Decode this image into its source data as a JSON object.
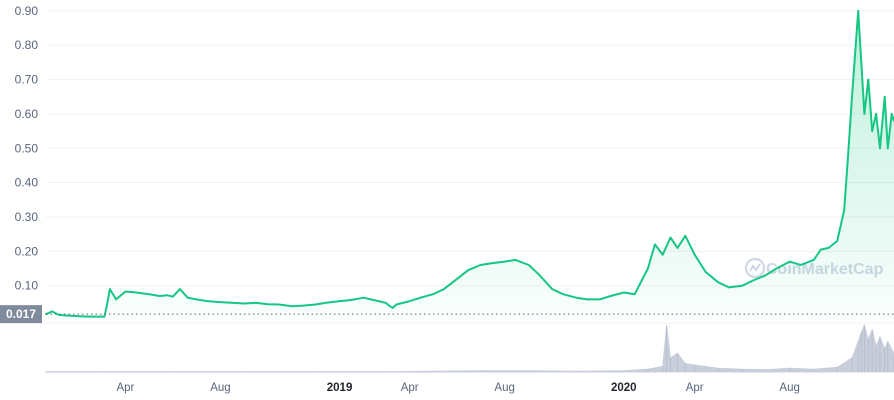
{
  "chart_data": {
    "type": "area",
    "title": "",
    "xlabel": "",
    "ylabel": "",
    "y_ticks": [
      "0.10",
      "0.20",
      "0.30",
      "0.40",
      "0.50",
      "0.60",
      "0.70",
      "0.80",
      "0.90"
    ],
    "ylim": [
      0.0,
      0.92
    ],
    "x_ticks": [
      {
        "label": "Apr",
        "date": "2018-04-01",
        "bold": false
      },
      {
        "label": "Aug",
        "date": "2018-08-01",
        "bold": false
      },
      {
        "label": "2019",
        "date": "2019-01-01",
        "bold": true
      },
      {
        "label": "Apr",
        "date": "2019-04-01",
        "bold": false
      },
      {
        "label": "Aug",
        "date": "2019-08-01",
        "bold": false
      },
      {
        "label": "2020",
        "date": "2020-01-01",
        "bold": true
      },
      {
        "label": "Apr",
        "date": "2020-04-01",
        "bold": false
      },
      {
        "label": "Aug",
        "date": "2020-08-01",
        "bold": false
      }
    ],
    "xlim": [
      "2017-12-20",
      "2020-12-13"
    ],
    "current_price_label": "0.017",
    "current_price": 0.017,
    "grid": true,
    "watermark": "CoinMarketCap",
    "colors": {
      "line": "#16c784",
      "area_top": "#16c784",
      "grid": "#eff2f5",
      "volume": "#c8cfdb",
      "price_badge": "#808a9d"
    },
    "series": [
      {
        "x": [
          "2017-12-20",
          "2017-12-28",
          "2018-01-05",
          "2018-01-15",
          "2018-02-01",
          "2018-02-15",
          "2018-03-01",
          "2018-03-05",
          "2018-03-08",
          "2018-03-12",
          "2018-03-20",
          "2018-04-01",
          "2018-04-15",
          "2018-05-01",
          "2018-05-15",
          "2018-05-25",
          "2018-06-01",
          "2018-06-10",
          "2018-06-20",
          "2018-07-01",
          "2018-07-15",
          "2018-08-01",
          "2018-08-15",
          "2018-09-01",
          "2018-09-15",
          "2018-10-01",
          "2018-10-15",
          "2018-11-01",
          "2018-11-15",
          "2018-12-01",
          "2018-12-15",
          "2019-01-01",
          "2019-01-15",
          "2019-02-01",
          "2019-02-10",
          "2019-02-20",
          "2019-03-01",
          "2019-03-10",
          "2019-03-15",
          "2019-04-01",
          "2019-04-15",
          "2019-05-01",
          "2019-05-15",
          "2019-06-01",
          "2019-06-15",
          "2019-07-01",
          "2019-07-15",
          "2019-08-01",
          "2019-08-15",
          "2019-09-01",
          "2019-09-15",
          "2019-10-01",
          "2019-10-15",
          "2019-11-01",
          "2019-11-15",
          "2019-12-01",
          "2019-12-15",
          "2020-01-01",
          "2020-01-15",
          "2020-02-01",
          "2020-02-10",
          "2020-02-20",
          "2020-03-01",
          "2020-03-10",
          "2020-03-20",
          "2020-04-01",
          "2020-04-15",
          "2020-05-01",
          "2020-05-15",
          "2020-06-01",
          "2020-06-15",
          "2020-07-01",
          "2020-07-15",
          "2020-08-01",
          "2020-08-15",
          "2020-09-01",
          "2020-09-10",
          "2020-09-20",
          "2020-10-01",
          "2020-10-10",
          "2020-10-15",
          "2020-10-20",
          "2020-10-28",
          "2020-11-05",
          "2020-11-10",
          "2020-11-15",
          "2020-11-20",
          "2020-11-25",
          "2020-12-01",
          "2020-12-05",
          "2020-12-10",
          "2020-12-13"
        ],
        "values": [
          0.017,
          0.025,
          0.015,
          0.013,
          0.011,
          0.01,
          0.01,
          0.01,
          0.04,
          0.09,
          0.06,
          0.083,
          0.08,
          0.075,
          0.07,
          0.072,
          0.068,
          0.09,
          0.065,
          0.06,
          0.055,
          0.052,
          0.05,
          0.048,
          0.05,
          0.046,
          0.045,
          0.04,
          0.042,
          0.045,
          0.05,
          0.055,
          0.058,
          0.065,
          0.06,
          0.055,
          0.05,
          0.035,
          0.045,
          0.055,
          0.065,
          0.075,
          0.09,
          0.12,
          0.145,
          0.16,
          0.165,
          0.17,
          0.175,
          0.16,
          0.13,
          0.09,
          0.075,
          0.065,
          0.06,
          0.06,
          0.07,
          0.08,
          0.075,
          0.15,
          0.22,
          0.19,
          0.24,
          0.21,
          0.245,
          0.19,
          0.14,
          0.11,
          0.095,
          0.1,
          0.115,
          0.13,
          0.15,
          0.17,
          0.16,
          0.175,
          0.205,
          0.21,
          0.23,
          0.32,
          0.48,
          0.65,
          0.9,
          0.6,
          0.7,
          0.55,
          0.6,
          0.5,
          0.65,
          0.5,
          0.6,
          0.58
        ]
      }
    ],
    "volume": {
      "x": [
        "2017-12-20",
        "2018-03-01",
        "2018-06-01",
        "2018-09-01",
        "2018-12-01",
        "2019-03-01",
        "2019-05-01",
        "2019-07-01",
        "2019-09-01",
        "2019-11-01",
        "2020-01-01",
        "2020-02-01",
        "2020-02-20",
        "2020-02-25",
        "2020-03-01",
        "2020-03-10",
        "2020-03-20",
        "2020-04-01",
        "2020-05-01",
        "2020-06-01",
        "2020-07-01",
        "2020-08-01",
        "2020-09-01",
        "2020-10-01",
        "2020-10-20",
        "2020-10-28",
        "2020-11-01",
        "2020-11-05",
        "2020-11-10",
        "2020-11-15",
        "2020-11-20",
        "2020-11-25",
        "2020-12-01",
        "2020-12-05",
        "2020-12-13"
      ],
      "values": [
        0.01,
        0.01,
        0.01,
        0.01,
        0.01,
        0.01,
        0.02,
        0.03,
        0.03,
        0.02,
        0.03,
        0.06,
        0.12,
        1.0,
        0.3,
        0.4,
        0.18,
        0.15,
        0.08,
        0.06,
        0.05,
        0.08,
        0.06,
        0.1,
        0.3,
        0.65,
        0.85,
        1.0,
        0.7,
        0.9,
        0.55,
        0.75,
        0.5,
        0.65,
        0.4
      ]
    }
  }
}
